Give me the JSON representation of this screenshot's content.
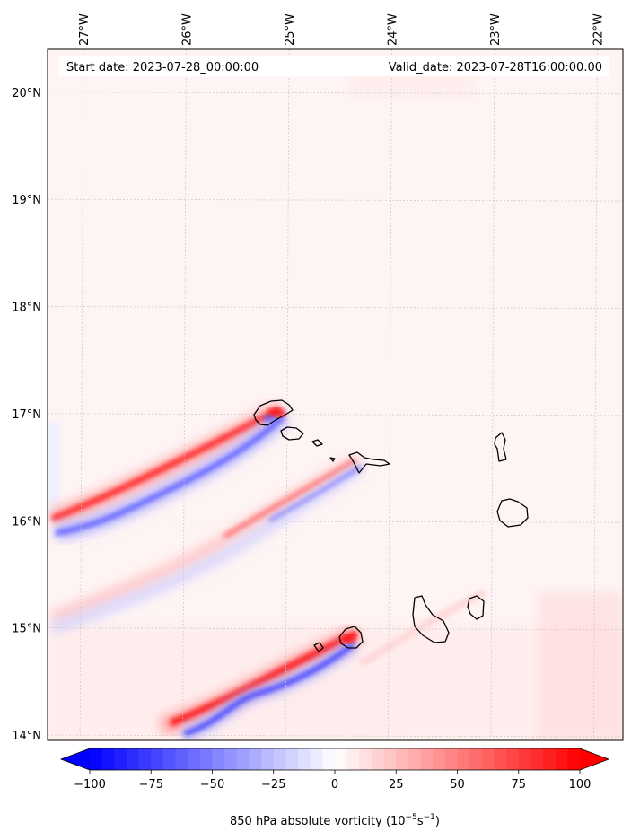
{
  "map": {
    "start_label": "Start date: 2023-07-28_00:00:00",
    "valid_label": "Valid_date: 2023-07-28T16:00:00.00",
    "field_name": "850 hPa absolute vorticity",
    "lon_ticks": [
      "27°W",
      "26°W",
      "25°W",
      "24°W",
      "23°W",
      "22°W"
    ],
    "lat_ticks": [
      "20°N",
      "19°N",
      "18°N",
      "17°N",
      "16°N",
      "15°N",
      "14°N"
    ],
    "extent": {
      "lon_min": -27.35,
      "lon_max": -21.75,
      "lat_min": 13.95,
      "lat_max": 20.4
    },
    "background_color": "#fff4f4",
    "coastline_color": "#000000",
    "features": [
      {
        "type": "vorticity-band",
        "name": "santo-antao-wake",
        "positive_side": "north"
      },
      {
        "type": "vorticity-band",
        "name": "sao-nicolau-wake",
        "positive_side": "north"
      },
      {
        "type": "vorticity-band",
        "name": "fogo-brava-wake",
        "positive_side": "north"
      }
    ],
    "islands": [
      "Santo Antão",
      "São Vicente",
      "Santa Luzia",
      "Branco",
      "Raso",
      "São Nicolau",
      "Sal",
      "Boa Vista",
      "Santiago",
      "Maio",
      "Fogo",
      "Brava"
    ]
  },
  "colorbar": {
    "ticks": [
      "−100",
      "−75",
      "−50",
      "−25",
      "0",
      "25",
      "50",
      "75",
      "100"
    ],
    "tick_values": [
      -100,
      -75,
      -50,
      -25,
      0,
      25,
      50,
      75,
      100
    ],
    "min": -100,
    "max": 100,
    "label_prefix": "850 hPa absolute vorticity (10",
    "label_exp1": "−5",
    "label_mid": "s",
    "label_exp2": "−1",
    "label_suffix": ")",
    "cmap": "bwr",
    "extend": "both"
  },
  "colors": {
    "negative": "#0000ff",
    "positive": "#ff0000",
    "neutral": "#ffffff"
  }
}
